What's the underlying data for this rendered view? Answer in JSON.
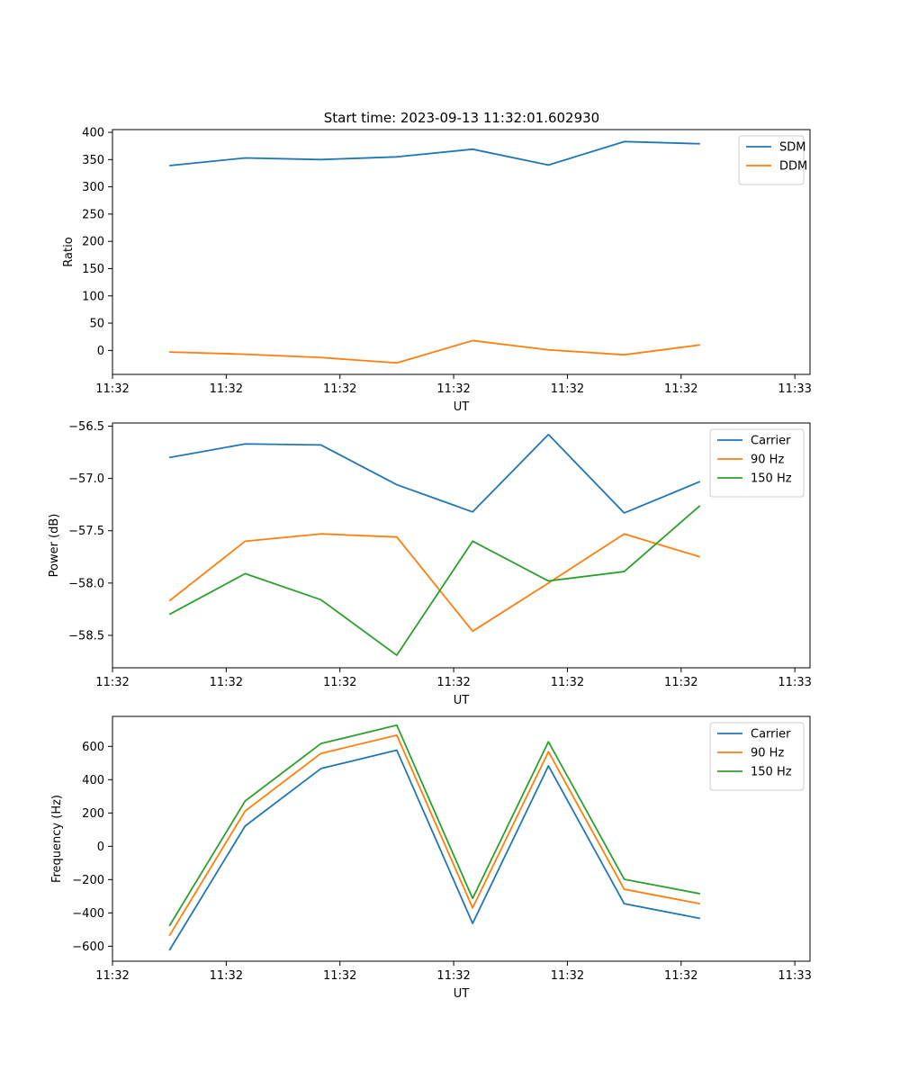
{
  "figure_title": "Start time: 2023-09-13 11:32:01.602930",
  "chart_data": [
    {
      "type": "line",
      "title": "Start time: 2023-09-13 11:32:01.602930",
      "xlabel": "UT",
      "ylabel": "Ratio",
      "xlim": [
        0,
        9.2
      ],
      "ylim": [
        -44,
        405
      ],
      "x": [
        0.75,
        1.75,
        2.75,
        3.75,
        4.75,
        5.75,
        6.75,
        7.75
      ],
      "xticks": [
        0,
        1.5,
        3,
        4.5,
        6,
        7.5,
        9
      ],
      "xticklabels": [
        "11:32",
        "11:32",
        "11:32",
        "11:32",
        "11:32",
        "11:32",
        "11:33"
      ],
      "yticks": [
        0,
        50,
        100,
        150,
        200,
        250,
        300,
        350,
        400
      ],
      "yticklabels": [
        "0",
        "50",
        "100",
        "150",
        "200",
        "250",
        "300",
        "350",
        "400"
      ],
      "legend_position": "top-right",
      "series": [
        {
          "name": "SDM",
          "color": "#1f77b4",
          "values": [
            339,
            353,
            350,
            355,
            369,
            340,
            383,
            379
          ]
        },
        {
          "name": "DDM",
          "color": "#ff7f0e",
          "values": [
            -3,
            -7,
            -13,
            -23,
            18,
            1,
            -8,
            10
          ]
        }
      ]
    },
    {
      "type": "line",
      "title": "",
      "xlabel": "UT",
      "ylabel": "Power (dB)",
      "xlim": [
        0,
        9.2
      ],
      "ylim": [
        -58.81,
        -56.47
      ],
      "x": [
        0.75,
        1.75,
        2.75,
        3.75,
        4.75,
        5.75,
        6.75,
        7.75
      ],
      "xticks": [
        0,
        1.5,
        3,
        4.5,
        6,
        7.5,
        9
      ],
      "xticklabels": [
        "11:32",
        "11:32",
        "11:32",
        "11:32",
        "11:32",
        "11:32",
        "11:33"
      ],
      "yticks": [
        -58.5,
        -58.0,
        -57.5,
        -57.0,
        -56.5
      ],
      "yticklabels": [
        "−58.5",
        "−58.0",
        "−57.5",
        "−57.0",
        "−56.5"
      ],
      "legend_position": "top-right",
      "series": [
        {
          "name": "Carrier",
          "color": "#1f77b4",
          "values": [
            -56.8,
            -56.67,
            -56.68,
            -57.06,
            -57.32,
            -56.58,
            -57.33,
            -57.03
          ]
        },
        {
          "name": "90 Hz",
          "color": "#ff7f0e",
          "values": [
            -58.17,
            -57.6,
            -57.53,
            -57.56,
            -58.46,
            -58.0,
            -57.53,
            -57.75
          ]
        },
        {
          "name": "150 Hz",
          "color": "#2ca02c",
          "values": [
            -58.3,
            -57.91,
            -58.16,
            -58.69,
            -57.6,
            -57.98,
            -57.89,
            -57.26
          ]
        }
      ]
    },
    {
      "type": "line",
      "title": "",
      "xlabel": "UT",
      "ylabel": "Frequency (Hz)",
      "xlim": [
        0,
        9.2
      ],
      "ylim": [
        -690,
        780
      ],
      "x": [
        0.75,
        1.75,
        2.75,
        3.75,
        4.75,
        5.75,
        6.75,
        7.75
      ],
      "xticks": [
        0,
        1.5,
        3,
        4.5,
        6,
        7.5,
        9
      ],
      "xticklabels": [
        "11:32",
        "11:32",
        "11:32",
        "11:32",
        "11:32",
        "11:32",
        "11:33"
      ],
      "yticks": [
        -600,
        -400,
        -200,
        0,
        200,
        400,
        600
      ],
      "yticklabels": [
        "−600",
        "−400",
        "−200",
        "0",
        "200",
        "400",
        "600"
      ],
      "legend_position": "top-right",
      "series": [
        {
          "name": "Carrier",
          "color": "#1f77b4",
          "values": [
            -625,
            122,
            467,
            577,
            -463,
            483,
            -345,
            -433
          ]
        },
        {
          "name": "90 Hz",
          "color": "#ff7f0e",
          "values": [
            -537,
            212,
            558,
            667,
            -370,
            568,
            -258,
            -345
          ]
        },
        {
          "name": "150 Hz",
          "color": "#2ca02c",
          "values": [
            -478,
            272,
            617,
            727,
            -313,
            628,
            -198,
            -285
          ]
        }
      ]
    }
  ]
}
